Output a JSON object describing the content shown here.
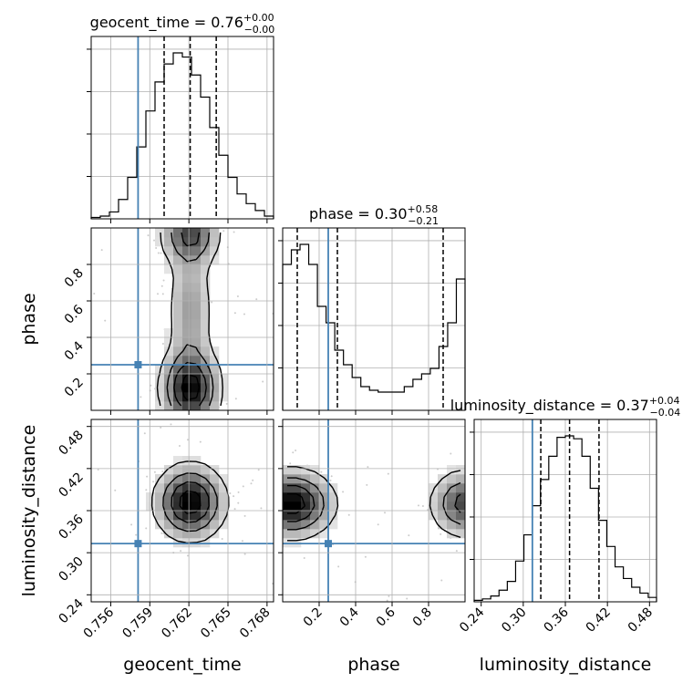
{
  "chart_data": {
    "type": "corner",
    "parameters": [
      {
        "name": "geocent_time",
        "xlabel": "geocent_time",
        "range": [
          0.7545,
          0.7685
        ],
        "ticks": [
          0.756,
          0.759,
          0.762,
          0.765,
          0.768
        ],
        "tick_labels": [
          "0.756",
          "0.759",
          "0.762",
          "0.765",
          "0.768"
        ],
        "truth": 0.7581,
        "quantiles": [
          0.7601,
          0.7621,
          0.7641
        ],
        "title": {
          "main": "geocent_time = 0.76",
          "sup": "+0.00",
          "sub": "−0.00"
        },
        "hist_edges_min": 0.7545,
        "hist_edges_max": 0.7685,
        "hist": [
          1,
          2,
          5,
          14,
          30,
          52,
          78,
          99,
          112,
          120,
          117,
          104,
          88,
          66,
          46,
          30,
          18,
          11,
          6,
          2
        ]
      },
      {
        "name": "phase",
        "xlabel": "phase",
        "ylabel": "phase",
        "range": [
          0.0,
          1.0
        ],
        "ticks": [
          0.2,
          0.4,
          0.6,
          0.8
        ],
        "tick_labels": [
          "0.2",
          "0.4",
          "0.6",
          "0.8"
        ],
        "truth": 0.25,
        "quantiles": [
          0.08,
          0.3,
          0.88
        ],
        "title": {
          "main": "phase = 0.30",
          "sup": "+0.58",
          "sub": "−0.21"
        },
        "hist_edges_min": 0.0,
        "hist_edges_max": 1.0,
        "hist": [
          80,
          88,
          91,
          80,
          57,
          48,
          33,
          25,
          18,
          13,
          11,
          10,
          10,
          10,
          13,
          17,
          20,
          23,
          35,
          48,
          72
        ]
      },
      {
        "name": "luminosity_distance",
        "xlabel": "luminosity_distance",
        "ylabel": "luminosity_distance",
        "range": [
          0.23,
          0.49
        ],
        "ticks": [
          0.24,
          0.3,
          0.36,
          0.42,
          0.48
        ],
        "tick_labels": [
          "0.24",
          "0.30",
          "0.36",
          "0.42",
          "0.48"
        ],
        "truth": 0.313,
        "quantiles": [
          0.325,
          0.366,
          0.408
        ],
        "title": {
          "main": "luminosity_distance = 0.37",
          "sup": "+0.04",
          "sub": "−0.04"
        },
        "hist_edges_min": 0.23,
        "hist_edges_max": 0.49,
        "hist": [
          1,
          2,
          4,
          8,
          14,
          28,
          46,
          66,
          84,
          100,
          113,
          114,
          112,
          100,
          78,
          56,
          38,
          24,
          16,
          10,
          6,
          3
        ]
      }
    ],
    "truth_color": "#4682b4",
    "grid": true
  }
}
